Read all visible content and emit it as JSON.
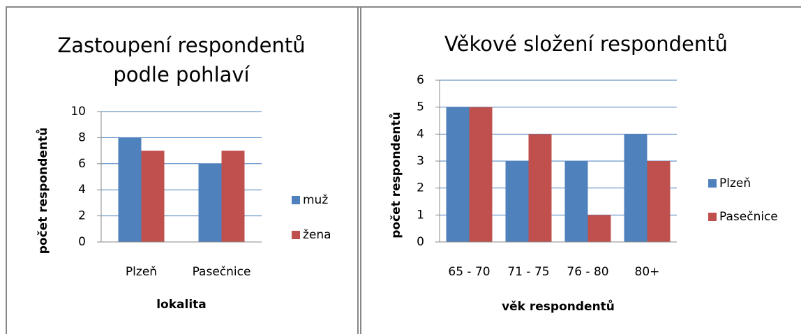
{
  "chart_data": [
    {
      "type": "bar",
      "title": "Zastoupení respondentů podle pohlaví",
      "x_label": "lokalita",
      "y_label": "počet respondentů",
      "categories": [
        "Plzeň",
        "Pasečnice"
      ],
      "series": [
        {
          "name": "muž",
          "color": "#4f81bd",
          "values": [
            8,
            6
          ]
        },
        {
          "name": "žena",
          "color": "#c0504d",
          "values": [
            7,
            7
          ]
        }
      ],
      "ylim": [
        0,
        10
      ],
      "yticks": [
        0,
        2,
        4,
        6,
        8,
        10
      ],
      "grid": true,
      "legend": "right"
    },
    {
      "type": "bar",
      "title": "Věkové složení respondentů",
      "x_label": "věk respondentů",
      "y_label": "počet respondentů",
      "categories": [
        "65 - 70",
        "71 - 75",
        "76 - 80",
        "80+"
      ],
      "series": [
        {
          "name": "Plzeň",
          "color": "#4f81bd",
          "values": [
            5,
            3,
            3,
            4
          ]
        },
        {
          "name": "Pasečnice",
          "color": "#c0504d",
          "values": [
            5,
            4,
            1,
            3
          ]
        }
      ],
      "ylim": [
        0,
        6
      ],
      "yticks": [
        0,
        1,
        2,
        3,
        4,
        5,
        6
      ],
      "grid": true,
      "legend": "right"
    }
  ]
}
